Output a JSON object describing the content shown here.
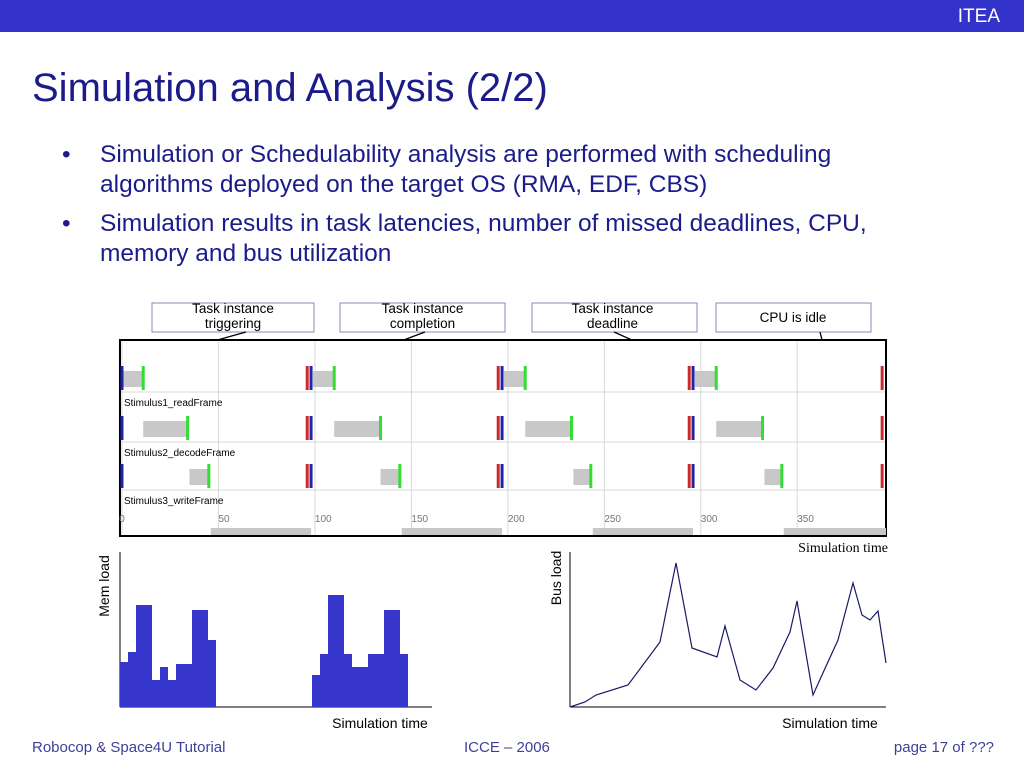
{
  "header": {
    "logo": "ITEA"
  },
  "title": "Simulation and Analysis (2/2)",
  "bullets": [
    "Simulation or Schedulability analysis are performed with scheduling algorithms deployed on the target OS (RMA, EDF, CBS)",
    "Simulation results in task latencies, number of missed deadlines, CPU, memory and bus utilization"
  ],
  "callouts": [
    "Task instance triggering",
    "Task instance completion",
    "Task instance deadline",
    "CPU is idle"
  ],
  "timeline": {
    "xlim": [
      0,
      396
    ],
    "xticks": [
      0,
      50,
      100,
      150,
      200,
      250,
      300,
      350
    ],
    "x_label": "Simulation time",
    "release_color": "#2323a8",
    "deadline_color": "#cc2a2a",
    "completion_color": "#33dd33",
    "busy_color": "#c8c8c8",
    "tasks": [
      {
        "name": "Stimulus1_readFrame",
        "releases": [
          0,
          98,
          197,
          296
        ],
        "deadlines": [
          96,
          195,
          294,
          394
        ],
        "busy_start": [
          0,
          99,
          198,
          297
        ],
        "completions": [
          11,
          110,
          209,
          308
        ]
      },
      {
        "name": "Stimulus2_decodeFrame",
        "releases": [
          0,
          98,
          197,
          296
        ],
        "deadlines": [
          96,
          195,
          294,
          394
        ],
        "busy_start": [
          11,
          110,
          209,
          308
        ],
        "completions": [
          34,
          134,
          233,
          332
        ]
      },
      {
        "name": "Stimulus3_writeFrame",
        "releases": [
          0,
          98,
          197,
          296
        ],
        "deadlines": [
          96,
          195,
          294,
          394
        ],
        "busy_start": [
          35,
          134,
          234,
          333
        ],
        "completions": [
          45,
          144,
          243,
          342
        ]
      }
    ],
    "idle_start": [
      46,
      145,
      244,
      343
    ],
    "idle_end": [
      98,
      197,
      296,
      396
    ]
  },
  "mem_chart": {
    "type": "histogram",
    "y_label": "Mem load",
    "x_label": "Simulation time",
    "color": "#3636cc",
    "xlim": [
      0,
      39
    ],
    "ylim": [
      0,
      155
    ],
    "bins": [
      0,
      1,
      2,
      4,
      5,
      6,
      7,
      9,
      11,
      12,
      24,
      25,
      26,
      28,
      29,
      30,
      31,
      33,
      35,
      36
    ],
    "values": [
      45,
      55,
      102,
      27,
      40,
      27,
      43,
      97,
      67,
      0,
      32,
      53,
      112,
      53,
      40,
      40,
      53,
      97,
      53
    ]
  },
  "bus_chart": {
    "type": "line",
    "y_label": "Bus load",
    "x_label": "Simulation time",
    "color": "#1a1a66",
    "xlim": [
      0,
      316
    ],
    "ylim": [
      0,
      155
    ],
    "x": [
      0,
      15,
      26,
      58,
      90,
      106,
      122,
      147,
      155,
      170,
      186,
      203,
      220,
      227,
      243,
      252,
      268,
      283,
      292,
      300,
      308,
      316
    ],
    "values": [
      0,
      5,
      12,
      22,
      65,
      144,
      59,
      50,
      81,
      27,
      17,
      39,
      75,
      106,
      12,
      32,
      67,
      124,
      92,
      87,
      96,
      44
    ]
  },
  "footer": {
    "left": "Robocop & Space4U Tutorial",
    "center": "ICCE – 2006",
    "right": "page 17 of ???"
  }
}
